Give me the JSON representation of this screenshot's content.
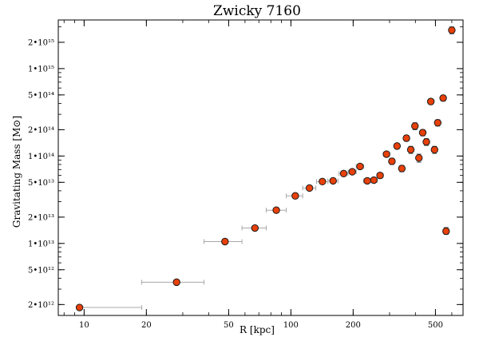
{
  "chart_data": {
    "type": "scatter",
    "title": "Zwicky 7160",
    "xlabel": "R [kpc]",
    "ylabel": "Gravitating Mass [M⊙]",
    "xscale": "log",
    "yscale": "log",
    "xlim": [
      7.5,
      680
    ],
    "ylim": [
      1500000000000.0,
      3600000000000000.0
    ],
    "grid": false,
    "x_ticks": [
      {
        "value": 10,
        "label": "10"
      },
      {
        "value": 20,
        "label": "20"
      },
      {
        "value": 50,
        "label": "50"
      },
      {
        "value": 100,
        "label": "100"
      },
      {
        "value": 200,
        "label": "200"
      },
      {
        "value": 500,
        "label": "500"
      }
    ],
    "y_ticks": [
      {
        "value": 2000000000000.0,
        "label": "2•10¹²"
      },
      {
        "value": 5000000000000.0,
        "label": "5•10¹²"
      },
      {
        "value": 10000000000000.0,
        "label": "1•10¹³"
      },
      {
        "value": 20000000000000.0,
        "label": "2•10¹³"
      },
      {
        "value": 50000000000000.0,
        "label": "5•10¹³"
      },
      {
        "value": 100000000000000.0,
        "label": "1•10¹⁴"
      },
      {
        "value": 200000000000000.0,
        "label": "2•10¹⁴"
      },
      {
        "value": 500000000000000.0,
        "label": "5•10¹⁴"
      },
      {
        "value": 1000000000000000.0,
        "label": "1•10¹⁵"
      },
      {
        "value": 2000000000000000.0,
        "label": "2•10¹⁵"
      }
    ],
    "points": [
      {
        "x": 9.5,
        "y": 1850000000000.0,
        "xerr": [
          9.5,
          19.0
        ],
        "yerr": [
          1750000000000.0,
          1950000000000.0
        ]
      },
      {
        "x": 28,
        "y": 3600000000000.0,
        "xerr": [
          19.0,
          38.0
        ],
        "yerr": [
          3450000000000.0,
          3750000000000.0
        ]
      },
      {
        "x": 48,
        "y": 10500000000000.0,
        "xerr": [
          38.0,
          58.0
        ],
        "yerr": [
          10000000000000.0,
          11000000000000.0
        ]
      },
      {
        "x": 67,
        "y": 15000000000000.0,
        "xerr": [
          58.0,
          76.0
        ],
        "yerr": [
          14300000000000.0,
          15700000000000.0
        ]
      },
      {
        "x": 85,
        "y": 24000000000000.0,
        "xerr": [
          76.0,
          95.0
        ],
        "yerr": [
          23000000000000.0,
          25000000000000.0
        ]
      },
      {
        "x": 105,
        "y": 35000000000000.0,
        "xerr": [
          95.0,
          114.0
        ],
        "yerr": [
          33500000000000.0,
          36500000000000.0
        ]
      },
      {
        "x": 123,
        "y": 43000000000000.0,
        "xerr": [
          114.0,
          132.0
        ],
        "yerr": [
          41000000000000.0,
          45000000000000.0
        ]
      },
      {
        "x": 142,
        "y": 51000000000000.0,
        "xerr": [
          133.0,
          151.0
        ],
        "yerr": [
          49000000000000.0,
          53000000000000.0
        ]
      },
      {
        "x": 160,
        "y": 52000000000000.0,
        "xerr": [
          151.0,
          169.0
        ],
        "yerr": [
          50000000000000.0,
          54000000000000.0
        ]
      },
      {
        "x": 180,
        "y": 63000000000000.0,
        "xerr": [
          171.0,
          189.0
        ],
        "yerr": [
          60000000000000.0,
          66000000000000.0
        ]
      },
      {
        "x": 198,
        "y": 66000000000000.0,
        "xerr": [
          189.0,
          207.0
        ],
        "yerr": [
          63000000000000.0,
          69000000000000.0
        ]
      },
      {
        "x": 216,
        "y": 76000000000000.0,
        "xerr": [
          207.0,
          225.0
        ],
        "yerr": [
          72000000000000.0,
          80000000000000.0
        ]
      },
      {
        "x": 234,
        "y": 52000000000000.0,
        "xerr": [
          225.0,
          243.0
        ],
        "yerr": [
          49000000000000.0,
          55000000000000.0
        ]
      },
      {
        "x": 252,
        "y": 53000000000000.0,
        "xerr": [
          243.0,
          261.0
        ],
        "yerr": [
          50000000000000.0,
          56000000000000.0
        ]
      },
      {
        "x": 270,
        "y": 60000000000000.0,
        "xerr": [
          261.0,
          279.0
        ],
        "yerr": [
          56000000000000.0,
          64000000000000.0
        ]
      },
      {
        "x": 290,
        "y": 105000000000000.0,
        "xerr": [
          280.0,
          300.0
        ],
        "yerr": [
          98000000000000.0,
          112000000000000.0
        ]
      },
      {
        "x": 308,
        "y": 87000000000000.0,
        "xerr": [
          299.0,
          317.0
        ],
        "yerr": [
          80000000000000.0,
          94000000000000.0
        ]
      },
      {
        "x": 326,
        "y": 130000000000000.0,
        "xerr": [
          317.0,
          335.0
        ],
        "yerr": [
          121000000000000.0,
          139000000000000.0
        ]
      },
      {
        "x": 344,
        "y": 72000000000000.0,
        "xerr": [
          335.0,
          353.0
        ],
        "yerr": [
          66000000000000.0,
          78000000000000.0
        ]
      },
      {
        "x": 362,
        "y": 160000000000000.0,
        "xerr": [
          353.0,
          371.0
        ],
        "yerr": [
          148000000000000.0,
          172000000000000.0
        ]
      },
      {
        "x": 380,
        "y": 118000000000000.0,
        "xerr": [
          371.0,
          389.0
        ],
        "yerr": [
          107000000000000.0,
          129000000000000.0
        ]
      },
      {
        "x": 398,
        "y": 220000000000000.0,
        "xerr": [
          389.0,
          407.0
        ],
        "yerr": [
          200000000000000.0,
          240000000000000.0
        ]
      },
      {
        "x": 416,
        "y": 95000000000000.0,
        "xerr": [
          407.0,
          425.0
        ],
        "yerr": [
          85000000000000.0,
          105000000000000.0
        ]
      },
      {
        "x": 434,
        "y": 185000000000000.0,
        "xerr": [
          425.0,
          443.0
        ],
        "yerr": [
          170000000000000.0,
          200000000000000.0
        ]
      },
      {
        "x": 452,
        "y": 145000000000000.0,
        "xerr": [
          443.0,
          461.0
        ],
        "yerr": [
          132000000000000.0,
          158000000000000.0
        ]
      },
      {
        "x": 475,
        "y": 420000000000000.0,
        "xerr": [
          466.0,
          484.0
        ],
        "yerr": [
          390000000000000.0,
          450000000000000.0
        ]
      },
      {
        "x": 495,
        "y": 118000000000000.0,
        "xerr": [
          486.0,
          504.0
        ],
        "yerr": [
          107000000000000.0,
          129000000000000.0
        ]
      },
      {
        "x": 513,
        "y": 240000000000000.0,
        "xerr": [
          504.0,
          522.0
        ],
        "yerr": [
          220000000000000.0,
          260000000000000.0
        ]
      },
      {
        "x": 545,
        "y": 460000000000000.0,
        "xerr": [
          536.0,
          554.0
        ],
        "yerr": [
          425000000000000.0,
          495000000000000.0
        ]
      },
      {
        "x": 563,
        "y": 13800000000000.0,
        "xerr": [
          554.0,
          572.0
        ],
        "yerr": [
          12700000000000.0,
          15200000000000.0
        ]
      },
      {
        "x": 600,
        "y": 2750000000000000.0,
        "xerr": [
          591.0,
          609.0
        ],
        "yerr": [
          2500000000000000.0,
          3000000000000000.0
        ]
      }
    ],
    "marker_color": "#e8400a",
    "marker_edge": "#1a1a1a",
    "errorbar_color": "#a8a8a8"
  }
}
